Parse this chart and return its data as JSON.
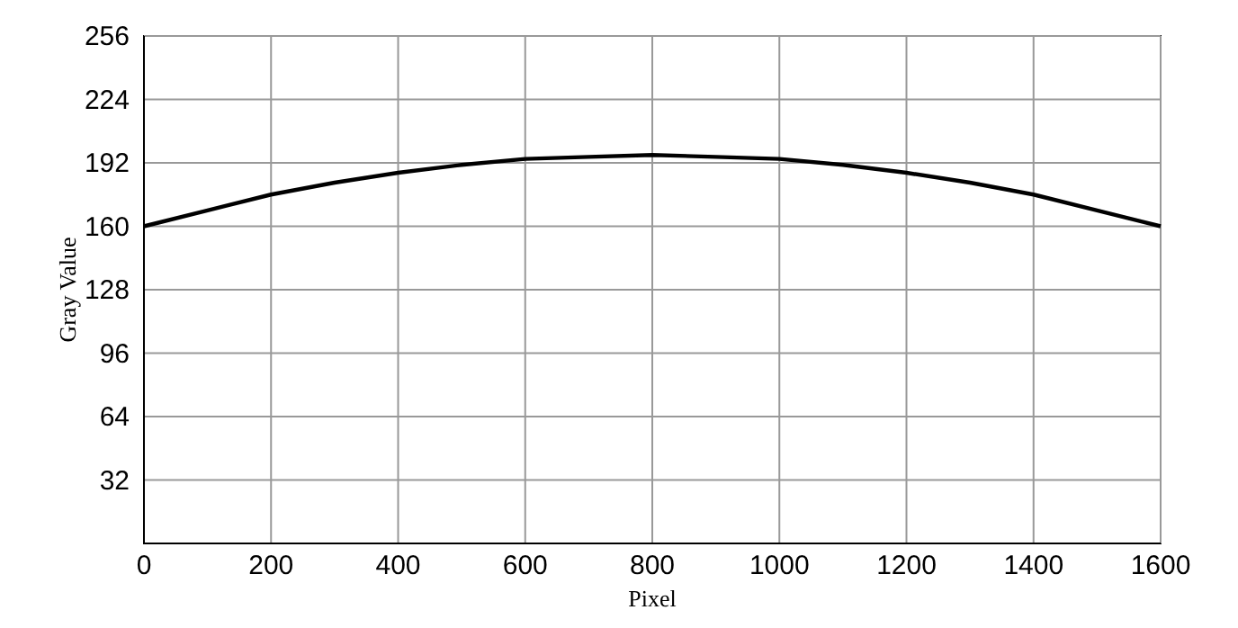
{
  "chart_data": {
    "type": "line",
    "xlabel": "Pixel",
    "ylabel": "Gray Value",
    "x": [
      0,
      100,
      200,
      300,
      400,
      500,
      600,
      700,
      800,
      900,
      1000,
      1100,
      1200,
      1300,
      1400,
      1500,
      1600
    ],
    "series": [
      {
        "color": "#000000",
        "values": [
          160,
          168,
          176,
          182,
          187,
          191,
          194,
          195,
          196,
          195,
          194,
          191,
          187,
          182,
          176,
          168,
          160
        ]
      }
    ],
    "xlim": [
      0,
      1600
    ],
    "xticks": [
      0,
      200,
      400,
      600,
      800,
      1000,
      1200,
      1400,
      1600
    ],
    "ylim": [
      0,
      256
    ],
    "yticks": [
      32,
      64,
      96,
      128,
      160,
      192,
      224,
      256
    ],
    "grid": true,
    "marker": "none",
    "line_style": "solid"
  }
}
